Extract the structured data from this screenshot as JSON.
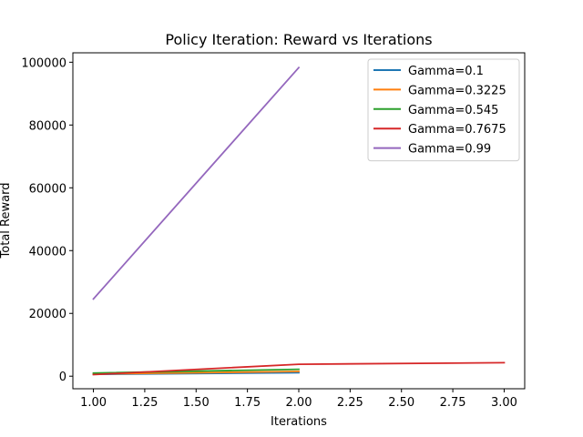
{
  "chart_data": {
    "type": "line",
    "title": "Policy Iteration: Reward vs Iterations",
    "xlabel": "Iterations",
    "ylabel": "Total Reward",
    "xlim": [
      0.9,
      3.1
    ],
    "ylim": [
      -4000,
      103000
    ],
    "xticks": [
      "1.00",
      "1.25",
      "1.50",
      "1.75",
      "2.00",
      "2.25",
      "2.50",
      "2.75",
      "3.00"
    ],
    "yticks": [
      "0",
      "20000",
      "40000",
      "60000",
      "80000",
      "100000"
    ],
    "grid": false,
    "legend_position": "top-right",
    "series": [
      {
        "name": "Gamma=0.1",
        "color": "#1f77b4",
        "x": [
          1,
          2
        ],
        "y": [
          600,
          1100
        ]
      },
      {
        "name": "Gamma=0.3225",
        "color": "#ff7f0e",
        "x": [
          1,
          2
        ],
        "y": [
          700,
          1500
        ]
      },
      {
        "name": "Gamma=0.545",
        "color": "#2ca02c",
        "x": [
          1,
          2
        ],
        "y": [
          1000,
          2200
        ]
      },
      {
        "name": "Gamma=0.7675",
        "color": "#d62728",
        "x": [
          1,
          2,
          3
        ],
        "y": [
          500,
          3800,
          4300
        ]
      },
      {
        "name": "Gamma=0.99",
        "color": "#9467bd",
        "x": [
          1,
          2
        ],
        "y": [
          24600,
          98300
        ]
      }
    ]
  }
}
